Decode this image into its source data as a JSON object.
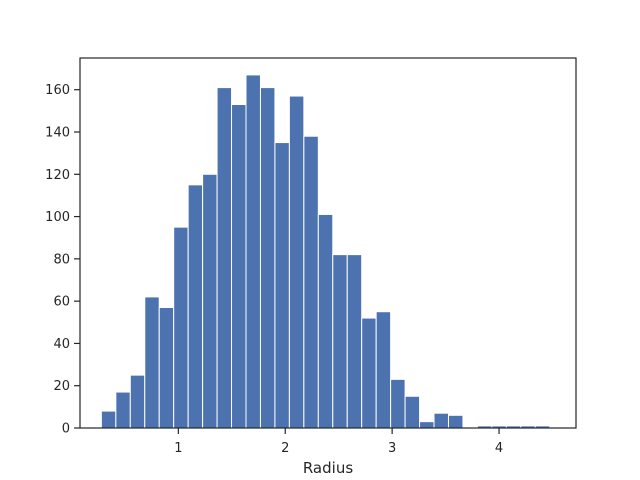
{
  "chart_data": {
    "type": "bar",
    "title": "",
    "xlabel": "Radius",
    "ylabel": "",
    "xlim": [
      0.08,
      4.72
    ],
    "ylim": [
      0,
      175
    ],
    "grid": false,
    "bar_color": "#4c72b0",
    "bin_width": 0.1353,
    "bins": [
      {
        "x0": 0.28,
        "count": 8
      },
      {
        "x0": 0.4153,
        "count": 17
      },
      {
        "x0": 0.5506,
        "count": 25
      },
      {
        "x0": 0.6859,
        "count": 62
      },
      {
        "x0": 0.8212,
        "count": 57
      },
      {
        "x0": 0.9565,
        "count": 95
      },
      {
        "x0": 1.0918,
        "count": 115
      },
      {
        "x0": 1.2271,
        "count": 120
      },
      {
        "x0": 1.3624,
        "count": 161
      },
      {
        "x0": 1.4976,
        "count": 153
      },
      {
        "x0": 1.6329,
        "count": 167
      },
      {
        "x0": 1.7682,
        "count": 161
      },
      {
        "x0": 1.9035,
        "count": 135
      },
      {
        "x0": 2.0388,
        "count": 157
      },
      {
        "x0": 2.1741,
        "count": 138
      },
      {
        "x0": 2.3094,
        "count": 101
      },
      {
        "x0": 2.4447,
        "count": 82
      },
      {
        "x0": 2.58,
        "count": 82
      },
      {
        "x0": 2.7153,
        "count": 52
      },
      {
        "x0": 2.8506,
        "count": 55
      },
      {
        "x0": 2.9859,
        "count": 23
      },
      {
        "x0": 3.1212,
        "count": 15
      },
      {
        "x0": 3.2565,
        "count": 3
      },
      {
        "x0": 3.3918,
        "count": 7
      },
      {
        "x0": 3.5271,
        "count": 6
      },
      {
        "x0": 3.6624,
        "count": 0
      },
      {
        "x0": 3.7976,
        "count": 1
      },
      {
        "x0": 3.9329,
        "count": 1
      },
      {
        "x0": 4.0682,
        "count": 1
      },
      {
        "x0": 4.2035,
        "count": 1
      },
      {
        "x0": 4.3388,
        "count": 1
      }
    ],
    "xticks": [
      1,
      2,
      3,
      4
    ],
    "xtick_labels": [
      "1",
      "2",
      "3",
      "4"
    ],
    "yticks": [
      0,
      20,
      40,
      60,
      80,
      100,
      120,
      140,
      160
    ],
    "ytick_labels": [
      "0",
      "20",
      "40",
      "60",
      "80",
      "100",
      "120",
      "140",
      "160"
    ]
  }
}
